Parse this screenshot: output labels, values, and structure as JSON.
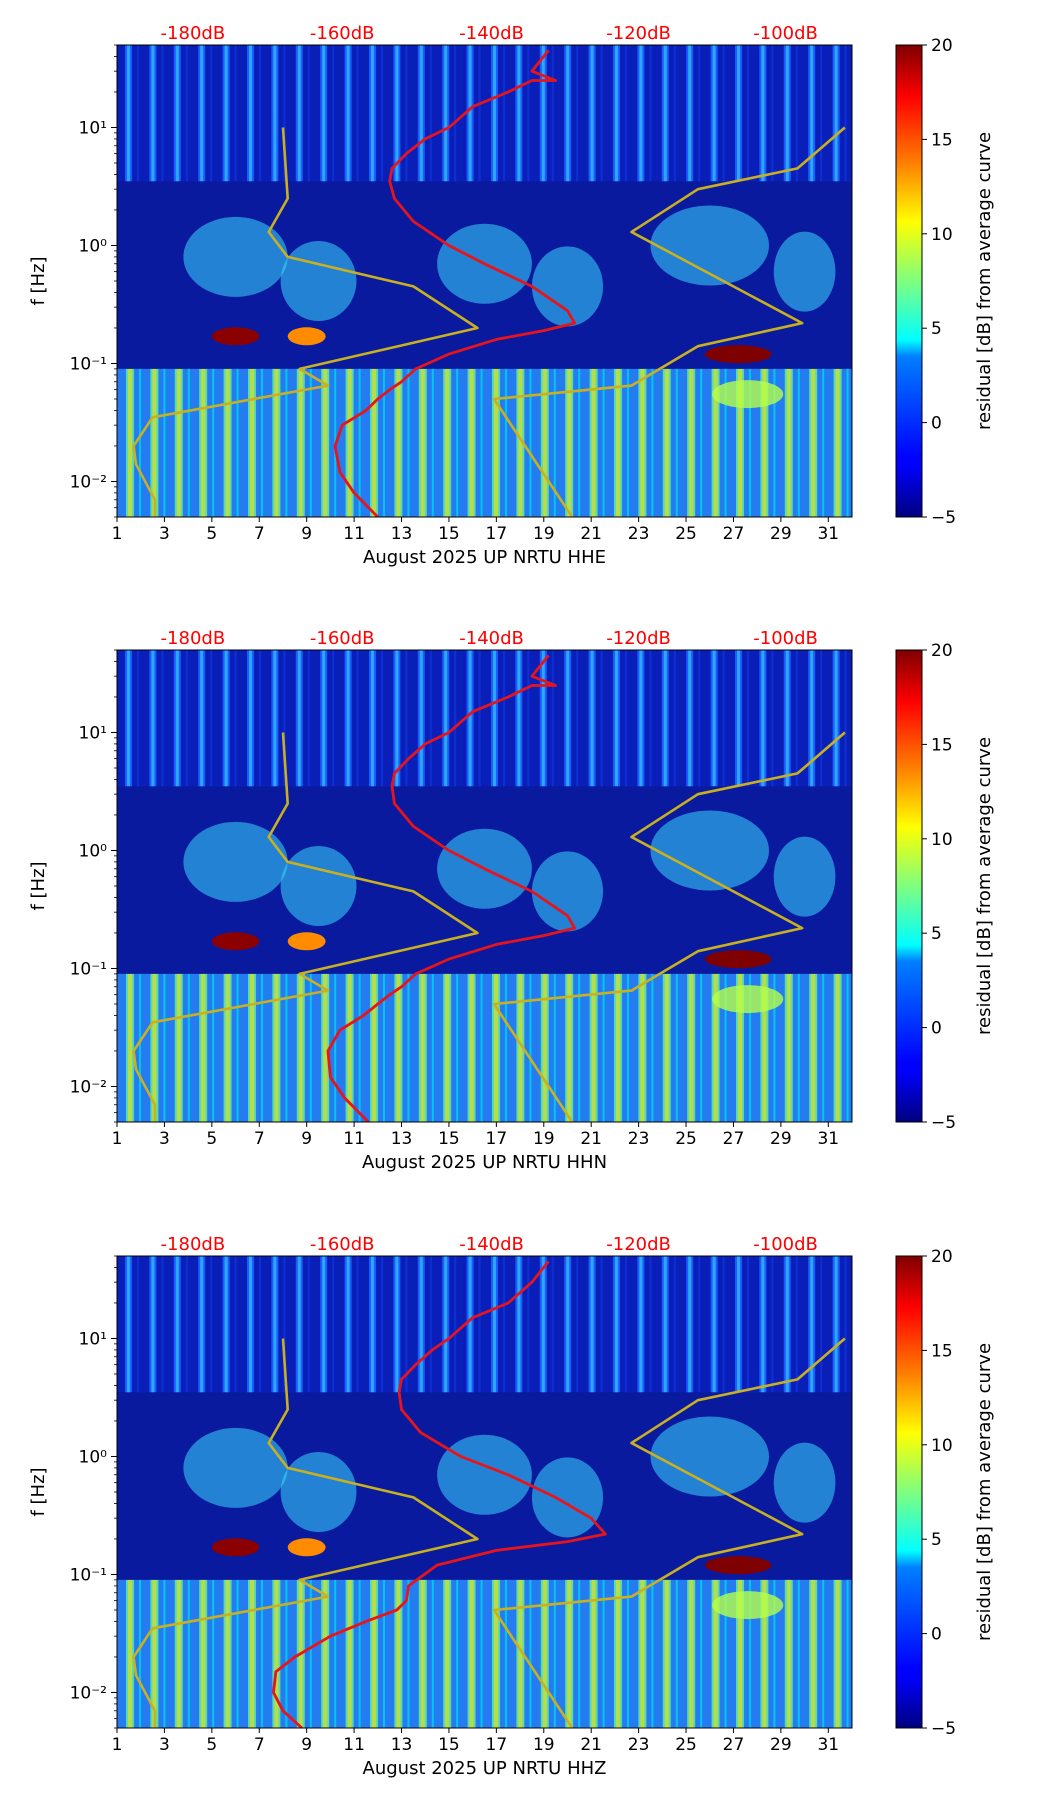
{
  "colors": {
    "psd_curve": "#e8141b",
    "noise_model": "#c9b020",
    "db_label": "#ff0000",
    "colormap": [
      "#00007f",
      "#0000ff",
      "#007fff",
      "#00ffff",
      "#7fff7f",
      "#ffff00",
      "#ff7f00",
      "#ff0000",
      "#7f0000"
    ]
  },
  "chart_data": [
    {
      "type": "heatmap",
      "channel": "HHE",
      "xlabel": "August 2025 UP NRTU  HHE",
      "ylabel": "f [Hz]",
      "xlim": [
        1,
        32
      ],
      "ylim": [
        0.005,
        50
      ],
      "yscale": "log",
      "xticks": [
        "1",
        "3",
        "5",
        "7",
        "9",
        "11",
        "13",
        "15",
        "17",
        "19",
        "21",
        "23",
        "25",
        "27",
        "29",
        "31"
      ],
      "yticks": [
        "10⁻²",
        "10⁻¹",
        "10⁰",
        "10¹"
      ],
      "top_axis_labels": [
        "-180dB",
        "-160dB",
        "-140dB",
        "-120dB",
        "-100dB"
      ],
      "top_axis_positions_day": [
        4.2,
        10.5,
        16.8,
        23.0,
        29.2
      ],
      "colorbar": {
        "label": "residual [dB] from average curve",
        "min": -5,
        "max": 20,
        "ticks": [
          "20",
          "15",
          "10",
          "5",
          "0",
          "−5"
        ]
      },
      "psd_curve_day_vs_hz": [
        [
          12.0,
          0.005
        ],
        [
          11.0,
          0.008
        ],
        [
          10.4,
          0.012
        ],
        [
          10.2,
          0.02
        ],
        [
          10.5,
          0.03
        ],
        [
          11.5,
          0.04
        ],
        [
          12.0,
          0.05
        ],
        [
          12.5,
          0.06
        ],
        [
          13.0,
          0.07
        ],
        [
          13.6,
          0.09
        ],
        [
          15.0,
          0.12
        ],
        [
          17.0,
          0.16
        ],
        [
          19.0,
          0.19
        ],
        [
          20.3,
          0.22
        ],
        [
          20.0,
          0.28
        ],
        [
          18.5,
          0.45
        ],
        [
          16.5,
          0.7
        ],
        [
          15.0,
          1.0
        ],
        [
          13.5,
          1.6
        ],
        [
          12.7,
          2.5
        ],
        [
          12.5,
          3.5
        ],
        [
          12.6,
          4.5
        ],
        [
          13.2,
          6.0
        ],
        [
          14.0,
          8.0
        ],
        [
          15.0,
          10.0
        ],
        [
          16.0,
          15.0
        ],
        [
          17.5,
          20.0
        ],
        [
          18.5,
          25.0
        ],
        [
          19.5,
          25.0
        ],
        [
          18.5,
          30.0
        ],
        [
          19.2,
          45.0
        ]
      ],
      "noise_model_low_day_vs_hz": [
        [
          8.0,
          10.0
        ],
        [
          8.2,
          2.5
        ],
        [
          7.4,
          1.3
        ],
        [
          8.2,
          0.8
        ],
        [
          13.5,
          0.45
        ],
        [
          16.2,
          0.2
        ],
        [
          8.7,
          0.09
        ],
        [
          9.9,
          0.065
        ],
        [
          2.5,
          0.035
        ],
        [
          1.7,
          0.02
        ],
        [
          1.8,
          0.014
        ],
        [
          2.6,
          0.007
        ],
        [
          2.6,
          0.005
        ]
      ],
      "noise_model_high_day_vs_hz": [
        [
          20.2,
          0.005
        ],
        [
          16.9,
          0.05
        ],
        [
          22.7,
          0.065
        ],
        [
          25.5,
          0.14
        ],
        [
          29.9,
          0.22
        ],
        [
          22.7,
          1.3
        ],
        [
          25.5,
          3.0
        ],
        [
          29.7,
          4.5
        ],
        [
          31.7,
          10.0
        ]
      ]
    },
    {
      "type": "heatmap",
      "channel": "HHN",
      "xlabel": "August 2025 UP NRTU  HHN",
      "ylabel": "f [Hz]",
      "xlim": [
        1,
        32
      ],
      "ylim": [
        0.005,
        50
      ],
      "yscale": "log",
      "xticks": [
        "1",
        "3",
        "5",
        "7",
        "9",
        "11",
        "13",
        "15",
        "17",
        "19",
        "21",
        "23",
        "25",
        "27",
        "29",
        "31"
      ],
      "yticks": [
        "10⁻²",
        "10⁻¹",
        "10⁰",
        "10¹"
      ],
      "top_axis_labels": [
        "-180dB",
        "-160dB",
        "-140dB",
        "-120dB",
        "-100dB"
      ],
      "top_axis_positions_day": [
        4.2,
        10.5,
        16.8,
        23.0,
        29.2
      ],
      "colorbar": {
        "label": "residual [dB] from average curve",
        "min": -5,
        "max": 20,
        "ticks": [
          "20",
          "15",
          "10",
          "5",
          "0",
          "−5"
        ]
      },
      "psd_curve_day_vs_hz": [
        [
          11.6,
          0.005
        ],
        [
          10.6,
          0.008
        ],
        [
          10.0,
          0.012
        ],
        [
          9.9,
          0.02
        ],
        [
          10.4,
          0.03
        ],
        [
          11.4,
          0.04
        ],
        [
          12.0,
          0.05
        ],
        [
          12.5,
          0.06
        ],
        [
          13.0,
          0.07
        ],
        [
          13.6,
          0.09
        ],
        [
          15.0,
          0.12
        ],
        [
          17.0,
          0.16
        ],
        [
          19.0,
          0.19
        ],
        [
          20.3,
          0.22
        ],
        [
          20.0,
          0.28
        ],
        [
          18.5,
          0.45
        ],
        [
          16.5,
          0.7
        ],
        [
          15.0,
          1.0
        ],
        [
          13.5,
          1.6
        ],
        [
          12.7,
          2.5
        ],
        [
          12.6,
          3.5
        ],
        [
          12.7,
          4.5
        ],
        [
          13.3,
          6.0
        ],
        [
          14.0,
          8.0
        ],
        [
          15.0,
          10.0
        ],
        [
          16.0,
          15.0
        ],
        [
          17.5,
          20.0
        ],
        [
          18.5,
          25.0
        ],
        [
          19.5,
          25.0
        ],
        [
          18.5,
          30.0
        ],
        [
          19.2,
          45.0
        ]
      ],
      "noise_model_low_day_vs_hz": [
        [
          8.0,
          10.0
        ],
        [
          8.2,
          2.5
        ],
        [
          7.4,
          1.3
        ],
        [
          8.2,
          0.8
        ],
        [
          13.5,
          0.45
        ],
        [
          16.2,
          0.2
        ],
        [
          8.7,
          0.09
        ],
        [
          9.9,
          0.065
        ],
        [
          2.5,
          0.035
        ],
        [
          1.7,
          0.02
        ],
        [
          1.8,
          0.014
        ],
        [
          2.6,
          0.007
        ],
        [
          2.6,
          0.005
        ]
      ],
      "noise_model_high_day_vs_hz": [
        [
          20.2,
          0.005
        ],
        [
          16.9,
          0.05
        ],
        [
          22.7,
          0.065
        ],
        [
          25.5,
          0.14
        ],
        [
          29.9,
          0.22
        ],
        [
          22.7,
          1.3
        ],
        [
          25.5,
          3.0
        ],
        [
          29.7,
          4.5
        ],
        [
          31.7,
          10.0
        ]
      ]
    },
    {
      "type": "heatmap",
      "channel": "HHZ",
      "xlabel": "August 2025 UP NRTU  HHZ",
      "ylabel": "f [Hz]",
      "xlim": [
        1,
        32
      ],
      "ylim": [
        0.005,
        50
      ],
      "yscale": "log",
      "xticks": [
        "1",
        "3",
        "5",
        "7",
        "9",
        "11",
        "13",
        "15",
        "17",
        "19",
        "21",
        "23",
        "25",
        "27",
        "29",
        "31"
      ],
      "yticks": [
        "10⁻²",
        "10⁻¹",
        "10⁰",
        "10¹"
      ],
      "top_axis_labels": [
        "-180dB",
        "-160dB",
        "-140dB",
        "-120dB",
        "-100dB"
      ],
      "top_axis_positions_day": [
        4.2,
        10.5,
        16.8,
        23.0,
        29.2
      ],
      "colorbar": {
        "label": "residual [dB] from average curve",
        "min": -5,
        "max": 20,
        "ticks": [
          "20",
          "15",
          "10",
          "5",
          "0",
          "−5"
        ]
      },
      "psd_curve_day_vs_hz": [
        [
          8.8,
          0.005
        ],
        [
          8.0,
          0.007
        ],
        [
          7.6,
          0.01
        ],
        [
          7.7,
          0.015
        ],
        [
          8.5,
          0.02
        ],
        [
          10.0,
          0.03
        ],
        [
          11.5,
          0.04
        ],
        [
          12.8,
          0.05
        ],
        [
          13.2,
          0.06
        ],
        [
          13.3,
          0.08
        ],
        [
          14.5,
          0.12
        ],
        [
          17.0,
          0.16
        ],
        [
          20.0,
          0.19
        ],
        [
          21.6,
          0.22
        ],
        [
          21.0,
          0.3
        ],
        [
          19.5,
          0.45
        ],
        [
          17.5,
          0.7
        ],
        [
          15.5,
          1.0
        ],
        [
          13.8,
          1.6
        ],
        [
          13.0,
          2.5
        ],
        [
          12.9,
          3.5
        ],
        [
          13.0,
          4.5
        ],
        [
          13.6,
          6.0
        ],
        [
          14.3,
          8.0
        ],
        [
          15.0,
          10.0
        ],
        [
          16.0,
          15.0
        ],
        [
          17.5,
          20.0
        ],
        [
          18.5,
          30.0
        ],
        [
          19.2,
          45.0
        ]
      ],
      "noise_model_low_day_vs_hz": [
        [
          8.0,
          10.0
        ],
        [
          8.2,
          2.5
        ],
        [
          7.4,
          1.3
        ],
        [
          8.2,
          0.8
        ],
        [
          13.5,
          0.45
        ],
        [
          16.2,
          0.2
        ],
        [
          8.7,
          0.09
        ],
        [
          9.9,
          0.065
        ],
        [
          2.5,
          0.035
        ],
        [
          1.7,
          0.02
        ],
        [
          1.8,
          0.014
        ],
        [
          2.6,
          0.007
        ],
        [
          2.6,
          0.005
        ]
      ],
      "noise_model_high_day_vs_hz": [
        [
          20.2,
          0.005
        ],
        [
          16.9,
          0.05
        ],
        [
          22.7,
          0.065
        ],
        [
          25.5,
          0.14
        ],
        [
          29.9,
          0.22
        ],
        [
          22.7,
          1.3
        ],
        [
          25.5,
          3.0
        ],
        [
          29.7,
          4.5
        ],
        [
          31.7,
          10.0
        ]
      ]
    }
  ]
}
